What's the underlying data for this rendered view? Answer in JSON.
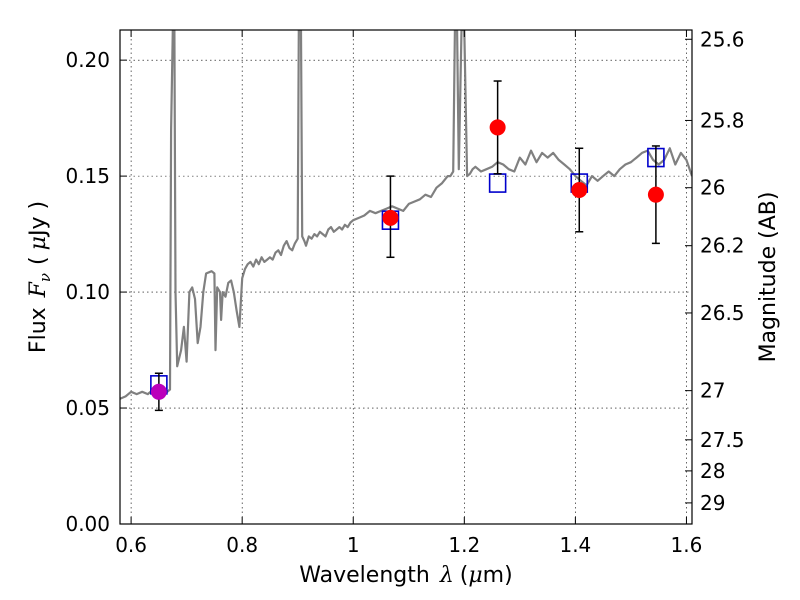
{
  "chart_data": {
    "type": "scatter",
    "xlabel_prefix": "Wavelength",
    "xlabel_symbol": "λ",
    "xlabel_unit_open": "(",
    "xlabel_unit_mu": "μ",
    "xlabel_unit_rest": "m)",
    "ylabel_prefix": "Flux",
    "ylabel_symbol": "F",
    "ylabel_subscript": "ν",
    "ylabel_unit_open": "(",
    "ylabel_unit_mu": "μ",
    "ylabel_unit_rest": "Jy )",
    "y2label": "Magnitude (AB)",
    "xlim": [
      0.58,
      1.61
    ],
    "ylim": [
      0.0,
      0.213
    ],
    "grid": true,
    "xticks": [
      0.6,
      0.8,
      1.0,
      1.2,
      1.4,
      1.6
    ],
    "xtick_labels": [
      "0.6",
      "0.8",
      "1",
      "1.2",
      "1.4",
      "1.6"
    ],
    "yticks": [
      0.0,
      0.05,
      0.1,
      0.15,
      0.2
    ],
    "ytick_labels": [
      "0.00",
      "0.05",
      "0.10",
      "0.15",
      "0.20"
    ],
    "y2ticks": [
      {
        "label": "25.6",
        "flux": 0.209
      },
      {
        "label": "25.8",
        "flux": 0.174
      },
      {
        "label": "26",
        "flux": 0.145
      },
      {
        "label": "26.2",
        "flux": 0.12
      },
      {
        "label": "26.5",
        "flux": 0.091
      },
      {
        "label": "27",
        "flux": 0.0575
      },
      {
        "label": "27.5",
        "flux": 0.0363
      },
      {
        "label": "28",
        "flux": 0.0229
      },
      {
        "label": "29",
        "flux": 0.0091
      }
    ],
    "model_color": "#808080",
    "model_spectrum": [
      [
        0.58,
        0.054
      ],
      [
        0.59,
        0.055
      ],
      [
        0.6,
        0.057
      ],
      [
        0.61,
        0.056
      ],
      [
        0.62,
        0.057
      ],
      [
        0.63,
        0.056
      ],
      [
        0.64,
        0.058
      ],
      [
        0.65,
        0.057
      ],
      [
        0.66,
        0.056
      ],
      [
        0.67,
        0.058
      ],
      [
        0.672,
        0.17
      ],
      [
        0.675,
        0.213
      ],
      [
        0.678,
        0.213
      ],
      [
        0.68,
        0.1
      ],
      [
        0.683,
        0.068
      ],
      [
        0.69,
        0.075
      ],
      [
        0.695,
        0.085
      ],
      [
        0.7,
        0.07
      ],
      [
        0.705,
        0.1
      ],
      [
        0.71,
        0.102
      ],
      [
        0.715,
        0.097
      ],
      [
        0.72,
        0.078
      ],
      [
        0.725,
        0.085
      ],
      [
        0.73,
        0.1
      ],
      [
        0.735,
        0.108
      ],
      [
        0.745,
        0.109
      ],
      [
        0.75,
        0.108
      ],
      [
        0.752,
        0.075
      ],
      [
        0.755,
        0.102
      ],
      [
        0.76,
        0.1
      ],
      [
        0.762,
        0.088
      ],
      [
        0.765,
        0.1
      ],
      [
        0.77,
        0.098
      ],
      [
        0.775,
        0.104
      ],
      [
        0.78,
        0.105
      ],
      [
        0.785,
        0.1
      ],
      [
        0.79,
        0.092
      ],
      [
        0.795,
        0.085
      ],
      [
        0.8,
        0.106
      ],
      [
        0.805,
        0.11
      ],
      [
        0.81,
        0.112
      ],
      [
        0.815,
        0.113
      ],
      [
        0.82,
        0.111
      ],
      [
        0.825,
        0.114
      ],
      [
        0.83,
        0.112
      ],
      [
        0.835,
        0.115
      ],
      [
        0.84,
        0.113
      ],
      [
        0.845,
        0.114
      ],
      [
        0.85,
        0.115
      ],
      [
        0.855,
        0.114
      ],
      [
        0.86,
        0.117
      ],
      [
        0.865,
        0.118
      ],
      [
        0.87,
        0.116
      ],
      [
        0.875,
        0.12
      ],
      [
        0.88,
        0.122
      ],
      [
        0.885,
        0.119
      ],
      [
        0.89,
        0.118
      ],
      [
        0.895,
        0.121
      ],
      [
        0.9,
        0.123
      ],
      [
        0.902,
        0.213
      ],
      [
        0.906,
        0.213
      ],
      [
        0.908,
        0.124
      ],
      [
        0.912,
        0.122
      ],
      [
        0.915,
        0.12
      ],
      [
        0.92,
        0.124
      ],
      [
        0.925,
        0.123
      ],
      [
        0.93,
        0.125
      ],
      [
        0.935,
        0.124
      ],
      [
        0.94,
        0.126
      ],
      [
        0.945,
        0.125
      ],
      [
        0.95,
        0.124
      ],
      [
        0.955,
        0.127
      ],
      [
        0.96,
        0.128
      ],
      [
        0.965,
        0.126
      ],
      [
        0.97,
        0.127
      ],
      [
        0.975,
        0.128
      ],
      [
        0.98,
        0.127
      ],
      [
        0.985,
        0.129
      ],
      [
        0.99,
        0.128
      ],
      [
        0.995,
        0.13
      ],
      [
        1.0,
        0.131
      ],
      [
        1.01,
        0.132
      ],
      [
        1.02,
        0.133
      ],
      [
        1.03,
        0.135
      ],
      [
        1.04,
        0.134
      ],
      [
        1.05,
        0.135
      ],
      [
        1.06,
        0.136
      ],
      [
        1.07,
        0.137
      ],
      [
        1.08,
        0.136
      ],
      [
        1.09,
        0.135
      ],
      [
        1.1,
        0.138
      ],
      [
        1.11,
        0.139
      ],
      [
        1.12,
        0.14
      ],
      [
        1.13,
        0.142
      ],
      [
        1.14,
        0.141
      ],
      [
        1.15,
        0.145
      ],
      [
        1.16,
        0.147
      ],
      [
        1.17,
        0.15
      ],
      [
        1.175,
        0.15
      ],
      [
        1.18,
        0.152
      ],
      [
        1.183,
        0.213
      ],
      [
        1.187,
        0.213
      ],
      [
        1.19,
        0.153
      ],
      [
        1.195,
        0.213
      ],
      [
        1.2,
        0.213
      ],
      [
        1.205,
        0.15
      ],
      [
        1.21,
        0.151
      ],
      [
        1.215,
        0.153
      ],
      [
        1.22,
        0.154
      ],
      [
        1.23,
        0.152
      ],
      [
        1.24,
        0.153
      ],
      [
        1.25,
        0.154
      ],
      [
        1.26,
        0.156
      ],
      [
        1.27,
        0.155
      ],
      [
        1.28,
        0.153
      ],
      [
        1.29,
        0.152
      ],
      [
        1.3,
        0.158
      ],
      [
        1.31,
        0.155
      ],
      [
        1.32,
        0.161
      ],
      [
        1.33,
        0.156
      ],
      [
        1.34,
        0.16
      ],
      [
        1.35,
        0.158
      ],
      [
        1.36,
        0.16
      ],
      [
        1.37,
        0.157
      ],
      [
        1.38,
        0.155
      ],
      [
        1.39,
        0.153
      ],
      [
        1.4,
        0.15
      ],
      [
        1.41,
        0.148
      ],
      [
        1.42,
        0.146
      ],
      [
        1.43,
        0.15
      ],
      [
        1.44,
        0.148
      ],
      [
        1.45,
        0.15
      ],
      [
        1.46,
        0.152
      ],
      [
        1.47,
        0.15
      ],
      [
        1.48,
        0.153
      ],
      [
        1.49,
        0.155
      ],
      [
        1.5,
        0.156
      ],
      [
        1.51,
        0.158
      ],
      [
        1.52,
        0.16
      ],
      [
        1.53,
        0.161
      ],
      [
        1.54,
        0.157
      ],
      [
        1.55,
        0.155
      ],
      [
        1.56,
        0.157
      ],
      [
        1.57,
        0.162
      ],
      [
        1.58,
        0.155
      ],
      [
        1.59,
        0.16
      ],
      [
        1.6,
        0.157
      ],
      [
        1.61,
        0.15
      ]
    ],
    "model_photometry": [
      {
        "x": 0.65,
        "y": 0.06
      },
      {
        "x": 1.067,
        "y": 0.131
      },
      {
        "x": 1.26,
        "y": 0.147
      },
      {
        "x": 1.407,
        "y": 0.147
      },
      {
        "x": 1.545,
        "y": 0.158
      }
    ],
    "model_photometry_color": "#0000cc",
    "observations": [
      {
        "x": 0.65,
        "y": 0.057,
        "err_low": 0.049,
        "err_high": 0.065,
        "color": "#bb00bb"
      },
      {
        "x": 1.067,
        "y": 0.132,
        "err_low": 0.115,
        "err_high": 0.15,
        "color": "#ff0000"
      },
      {
        "x": 1.26,
        "y": 0.171,
        "err_low": 0.151,
        "err_high": 0.191,
        "color": "#ff0000"
      },
      {
        "x": 1.407,
        "y": 0.144,
        "err_low": 0.126,
        "err_high": 0.162,
        "color": "#ff0000"
      },
      {
        "x": 1.545,
        "y": 0.142,
        "err_low": 0.121,
        "err_high": 0.163,
        "color": "#ff0000"
      }
    ]
  }
}
